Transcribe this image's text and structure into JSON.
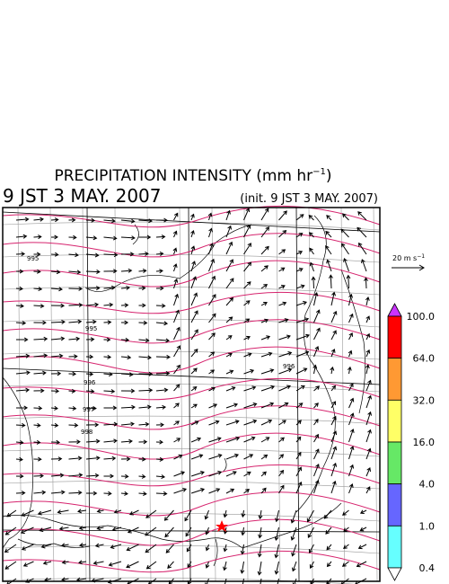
{
  "header": {
    "title": "PRECIPITATION INTENSITY (mm hr",
    "title_sup": "−1",
    "title_end": ")",
    "valid_time": "9 JST 3 MAY. 2007",
    "init_time": "(init. 9 JST 3 MAY. 2007)"
  },
  "vector_scale": {
    "label": "20 m s",
    "label_sup": "−1"
  },
  "colorbar": {
    "labels": [
      "100.0",
      "64.0",
      "32.0",
      "16.0",
      "4.0",
      "1.0",
      "0.4"
    ],
    "colors": [
      "#ff0000",
      "#ff9933",
      "#ffff66",
      "#66e866",
      "#6666ff",
      "#66ffff"
    ],
    "over_color": "#cc33ff",
    "under_color": "#ffffff"
  },
  "isobar_labels": [
    "995",
    "996",
    "997",
    "998",
    "996",
    "995"
  ]
}
